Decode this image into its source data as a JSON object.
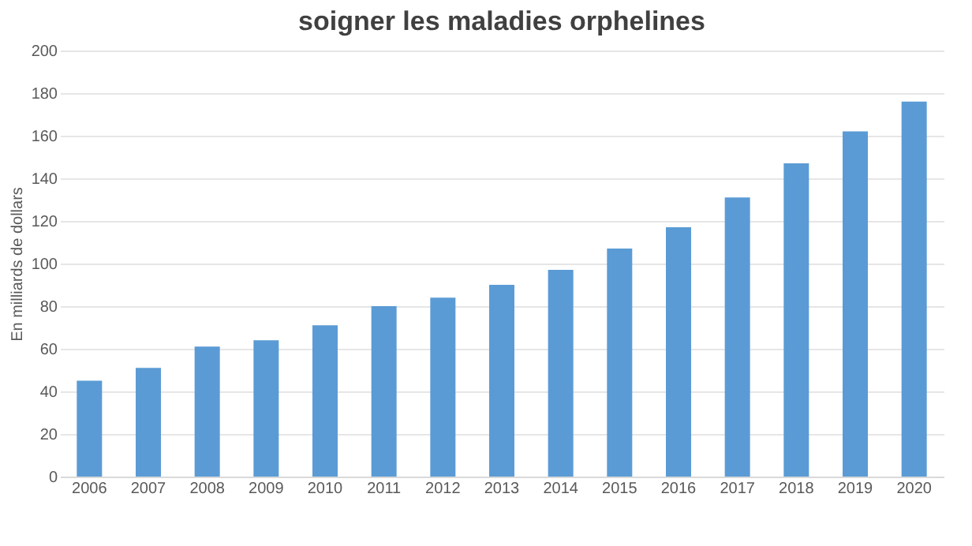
{
  "chart_data": {
    "type": "bar",
    "title": "soigner les maladies orphelines",
    "ylabel": "En milliards de dollars",
    "categories": [
      "2006",
      "2007",
      "2008",
      "2009",
      "2010",
      "2011",
      "2012",
      "2013",
      "2014",
      "2015",
      "2016",
      "2017",
      "2018",
      "2019",
      "2020"
    ],
    "values": [
      45,
      51,
      61,
      64,
      71,
      80,
      84,
      90,
      97,
      107,
      117,
      131,
      147,
      162,
      176
    ],
    "color": "#5b9bd5",
    "ylim": [
      0,
      200
    ],
    "yticks": [
      0,
      20,
      40,
      60,
      80,
      100,
      120,
      140,
      160,
      180,
      200
    ],
    "grid": "y"
  }
}
